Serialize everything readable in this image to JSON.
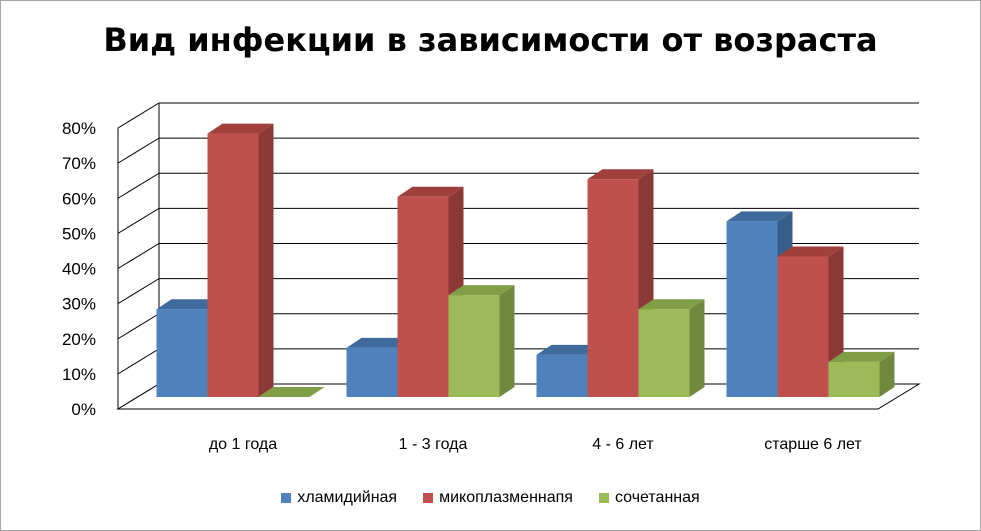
{
  "chart_data": {
    "type": "bar",
    "title": "Вид инфекции в зависимости от возраста",
    "categories": [
      "до 1 года",
      "1 - 3 года",
      "4 - 6 лет",
      "старше 6 лет"
    ],
    "series": [
      {
        "name": "хламидийная",
        "values": [
          25,
          14,
          12,
          50
        ],
        "color": "#4F81BD",
        "side_color": "#385D8A",
        "top_color": "#3F6A9C"
      },
      {
        "name": "микоплазменнапя",
        "values": [
          75,
          57,
          62,
          40
        ],
        "color": "#C0504D",
        "side_color": "#8C3836",
        "top_color": "#A0403D"
      },
      {
        "name": "сочетанная",
        "values": [
          0,
          29,
          25,
          10
        ],
        "color": "#9BBB59",
        "side_color": "#71893F",
        "top_color": "#7F9E46"
      }
    ],
    "y_ticks": [
      "0%",
      "10%",
      "20%",
      "30%",
      "40%",
      "50%",
      "60%",
      "70%",
      "80%"
    ],
    "ylim": [
      0,
      80
    ],
    "grid": true,
    "style": "3d-clustered-column",
    "legend_position": "bottom"
  }
}
